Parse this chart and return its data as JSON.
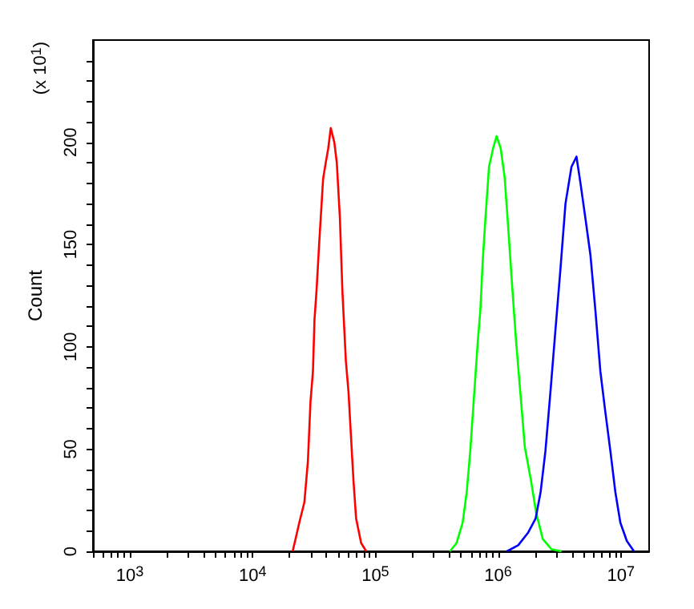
{
  "chart_data": {
    "type": "line",
    "ylabel": "Count",
    "annotations": [
      "(x 10$^{1}$)"
    ],
    "log": "x",
    "marker": "none",
    "grid": false,
    "xlim": [
      500,
      17000000
    ],
    "ylim": [
      0,
      250
    ],
    "xticks": [
      {
        "value": 500,
        "label": null
      },
      {
        "value": 600,
        "label": null
      },
      {
        "value": 700,
        "label": null
      },
      {
        "value": 800,
        "label": null
      },
      {
        "value": 900,
        "label": null
      },
      {
        "value": 1000,
        "label": "10$^{3}$"
      },
      {
        "value": 2000,
        "label": null
      },
      {
        "value": 3000,
        "label": null
      },
      {
        "value": 4000,
        "label": null
      },
      {
        "value": 5000,
        "label": null
      },
      {
        "value": 6000,
        "label": null
      },
      {
        "value": 7000,
        "label": null
      },
      {
        "value": 8000,
        "label": null
      },
      {
        "value": 9000,
        "label": null
      },
      {
        "value": 10000,
        "label": "10$^{4}$"
      },
      {
        "value": 20000,
        "label": null
      },
      {
        "value": 30000,
        "label": null
      },
      {
        "value": 40000,
        "label": null
      },
      {
        "value": 50000,
        "label": null
      },
      {
        "value": 60000,
        "label": null
      },
      {
        "value": 70000,
        "label": null
      },
      {
        "value": 80000,
        "label": null
      },
      {
        "value": 90000,
        "label": null
      },
      {
        "value": 100000,
        "label": "10$^{5}$"
      },
      {
        "value": 200000,
        "label": null
      },
      {
        "value": 300000,
        "label": null
      },
      {
        "value": 400000,
        "label": null
      },
      {
        "value": 500000,
        "label": null
      },
      {
        "value": 600000,
        "label": null
      },
      {
        "value": 700000,
        "label": null
      },
      {
        "value": 800000,
        "label": null
      },
      {
        "value": 900000,
        "label": null
      },
      {
        "value": 1000000,
        "label": "10$^{6}$"
      },
      {
        "value": 2000000,
        "label": null
      },
      {
        "value": 3000000,
        "label": null
      },
      {
        "value": 4000000,
        "label": null
      },
      {
        "value": 5000000,
        "label": null
      },
      {
        "value": 6000000,
        "label": null
      },
      {
        "value": 7000000,
        "label": null
      },
      {
        "value": 8000000,
        "label": null
      },
      {
        "value": 9000000,
        "label": null
      },
      {
        "value": 10000000,
        "label": "10$^{7}$"
      }
    ],
    "yticks": [
      0,
      {
        "value": 10,
        "label": null
      },
      {
        "value": 20,
        "label": null
      },
      {
        "value": 30,
        "label": null
      },
      {
        "value": 40,
        "label": null
      },
      50,
      {
        "value": 60,
        "label": null
      },
      {
        "value": 70,
        "label": null
      },
      {
        "value": 80,
        "label": null
      },
      {
        "value": 90,
        "label": null
      },
      100,
      {
        "value": 110,
        "label": null
      },
      {
        "value": 120,
        "label": null
      },
      {
        "value": 130,
        "label": null
      },
      {
        "value": 140,
        "label": null
      },
      150,
      {
        "value": 160,
        "label": null
      },
      {
        "value": 170,
        "label": null
      },
      {
        "value": 180,
        "label": null
      },
      {
        "value": 190,
        "label": null
      },
      200,
      {
        "value": 210,
        "label": null
      },
      {
        "value": 220,
        "label": null
      },
      {
        "value": 230,
        "label": null
      },
      {
        "value": 240,
        "label": null
      }
    ],
    "series": [
      {
        "color": "#ff0000",
        "x": [
          21200,
          24000,
          26400,
          28200,
          29600,
          31000,
          31900,
          33200,
          34800,
          37500,
          39400,
          41300,
          43300,
          46300,
          48500,
          51400,
          53800,
          57500,
          60400,
          63300,
          66400,
          69700,
          76600,
          84300
        ],
        "values": [
          0,
          14,
          24,
          44,
          73,
          88,
          113,
          128,
          150,
          182,
          190,
          197,
          207,
          200,
          190,
          163,
          128,
          93,
          78,
          56,
          34,
          16,
          4,
          0
        ]
      },
      {
        "color": "#00ff00",
        "x": [
          405000,
          458000,
          514000,
          555000,
          593000,
          640000,
          684000,
          717000,
          751000,
          789000,
          843000,
          910000,
          972000,
          1050000,
          1130000,
          1210000,
          1290000,
          1400000,
          1540000,
          1650000,
          1860000,
          2040000,
          2310000,
          2720000,
          3290000
        ],
        "values": [
          0,
          4,
          14,
          29,
          49,
          78,
          103,
          118,
          143,
          163,
          188,
          197,
          203,
          197,
          183,
          158,
          133,
          103,
          73,
          51,
          34,
          19,
          6,
          1,
          0
        ]
      },
      {
        "color": "#0000ff",
        "x": [
          1180000,
          1460000,
          1750000,
          2020000,
          2220000,
          2430000,
          2670000,
          2930000,
          3220000,
          3540000,
          3960000,
          4350000,
          4690000,
          5140000,
          5650000,
          6200000,
          6810000,
          7480000,
          8220000,
          9020000,
          9910000,
          11200000,
          12800000
        ],
        "values": [
          0,
          3,
          9,
          16,
          29,
          49,
          78,
          108,
          138,
          170,
          188,
          193,
          180,
          163,
          145,
          118,
          88,
          68,
          49,
          29,
          14,
          5,
          0
        ]
      }
    ]
  }
}
